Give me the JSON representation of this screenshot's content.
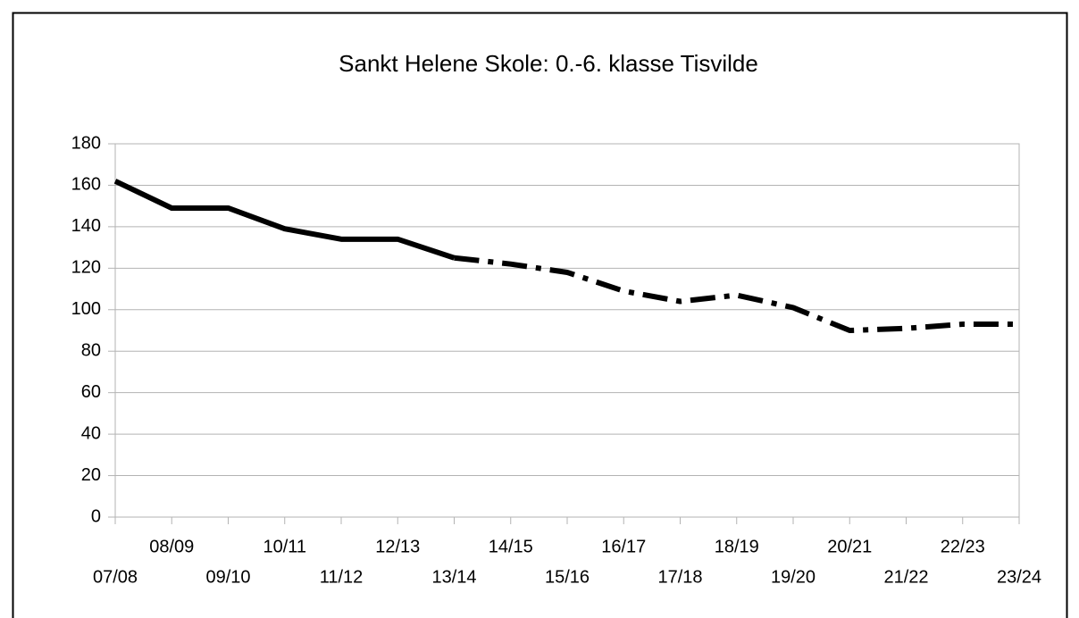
{
  "chart_data": {
    "type": "line",
    "title": "Sankt Helene Skole: 0.-6. klasse Tisvilde",
    "categories": [
      "07/08",
      "08/09",
      "09/10",
      "10/11",
      "11/12",
      "12/13",
      "13/14",
      "14/15",
      "15/16",
      "16/17",
      "17/18",
      "18/19",
      "19/20",
      "20/21",
      "21/22",
      "22/23",
      "23/24"
    ],
    "series": [
      {
        "color": "#000000",
        "line_style": "solid",
        "values": [
          162,
          149,
          149,
          139,
          134,
          134,
          125,
          null,
          null,
          null,
          null,
          null,
          null,
          null,
          null,
          null,
          null
        ]
      },
      {
        "color": "#000000",
        "line_style": "dashdot",
        "values": [
          null,
          null,
          null,
          null,
          null,
          null,
          125,
          122,
          118,
          109,
          104,
          107,
          101,
          90,
          91,
          93,
          93
        ]
      }
    ],
    "ylim": [
      0,
      180
    ],
    "yticks": [
      0,
      20,
      40,
      60,
      80,
      100,
      120,
      140,
      160,
      180
    ],
    "grid": true
  }
}
